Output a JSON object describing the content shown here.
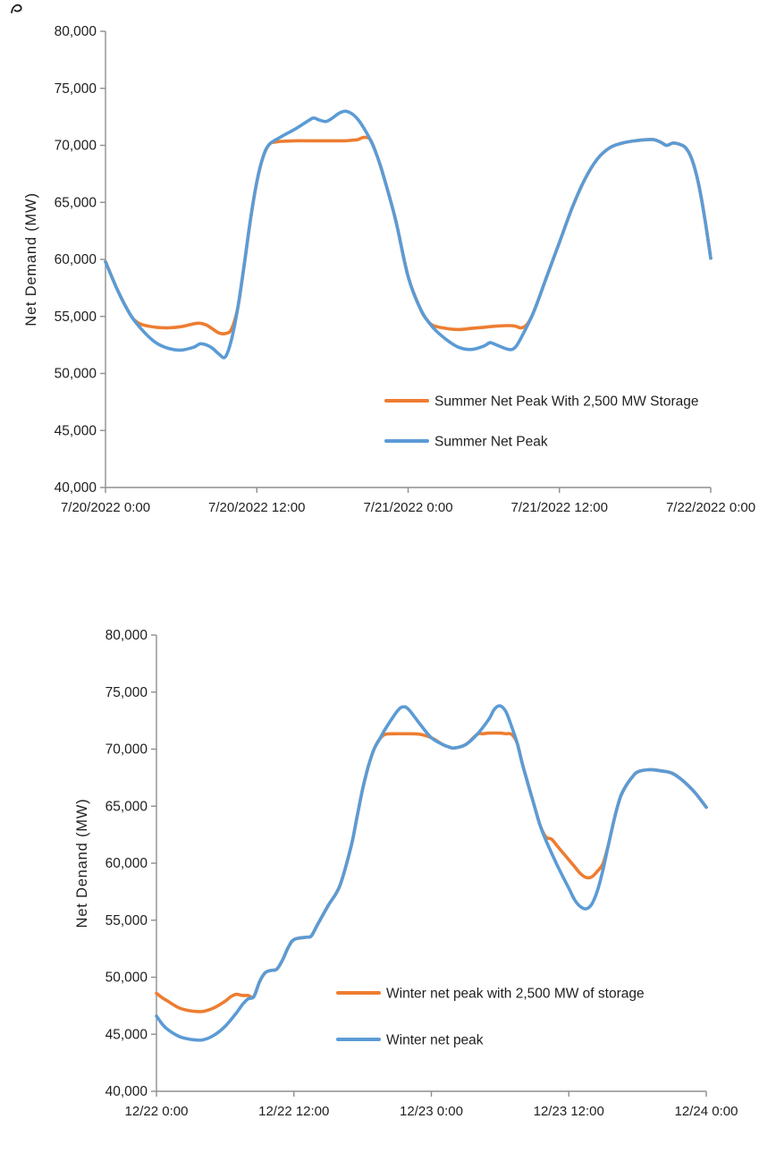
{
  "figure": {
    "background": "#ffffff"
  },
  "colors": {
    "storage_series": "#ED7D31",
    "net_peak_series": "#5B9BD5",
    "axis": "#8f8f8f",
    "text": "#1f1f1f"
  },
  "chart_data": [
    {
      "id": "summer",
      "type": "line",
      "title": "",
      "xlabel": "",
      "ylabel": "Net Demand (MW)",
      "ylim": [
        40000,
        80000
      ],
      "xlim": [
        0,
        48
      ],
      "grid": false,
      "legend_position": "inside-lower-right",
      "yticks": [
        40000,
        45000,
        50000,
        55000,
        60000,
        65000,
        70000,
        75000,
        80000
      ],
      "ytick_labels": [
        "40,000",
        "45,000",
        "50,000",
        "55,000",
        "60,000",
        "65,000",
        "70,000",
        "75,000",
        "80,000"
      ],
      "xticks": [
        0,
        12,
        24,
        36,
        48
      ],
      "xtick_labels": [
        "7/20/2022 0:00",
        "7/20/2022 12:00",
        "7/21/2022 0:00",
        "7/21/2022 12:00",
        "7/22/2022 0:00"
      ],
      "series": [
        {
          "name": "Summer Net Peak With 2,500 MW Storage",
          "color": "#ED7D31",
          "x": [
            0,
            1,
            2,
            2.5,
            3,
            4,
            5,
            6,
            7,
            7.5,
            8,
            8.5,
            9,
            9.5,
            10,
            10.5,
            11,
            11.5,
            12,
            12.5,
            13,
            13.5,
            14,
            15,
            16,
            17,
            18,
            19,
            19.5,
            20,
            20.5,
            21,
            21.5,
            22,
            23,
            24,
            25,
            25.5,
            26,
            27,
            28,
            29,
            30,
            31,
            32,
            32.5,
            33,
            33.5,
            34,
            35,
            36,
            37,
            38,
            39,
            40,
            41,
            42,
            43,
            43.5,
            44,
            44.5,
            45,
            45.5,
            46,
            46.5,
            47,
            47.5,
            48
          ],
          "y": [
            59800,
            57200,
            55100,
            54500,
            54250,
            54050,
            54000,
            54100,
            54350,
            54400,
            54250,
            53900,
            53550,
            53500,
            53900,
            55800,
            59500,
            63500,
            66800,
            69000,
            70100,
            70300,
            70350,
            70400,
            70400,
            70400,
            70400,
            70400,
            70450,
            70500,
            70700,
            70500,
            69200,
            67500,
            63500,
            58500,
            55600,
            54700,
            54200,
            53950,
            53850,
            53950,
            54050,
            54150,
            54200,
            54150,
            54000,
            54400,
            55500,
            58500,
            61500,
            64500,
            67000,
            68800,
            69800,
            70200,
            70400,
            70500,
            70500,
            70300,
            70000,
            70200,
            70100,
            69800,
            68800,
            66800,
            63800,
            60100
          ]
        },
        {
          "name": "Summer Net Peak",
          "color": "#5B9BD5",
          "x": [
            0,
            1,
            2,
            3,
            4,
            5,
            6,
            7,
            7.5,
            8,
            8.5,
            9,
            9.5,
            10,
            10.5,
            11,
            11.5,
            12,
            12.5,
            13,
            14,
            15,
            16,
            16.5,
            17,
            17.5,
            18,
            18.5,
            19,
            19.5,
            20,
            20.5,
            21,
            21.5,
            22,
            23,
            24,
            25,
            26,
            27,
            28,
            29,
            30,
            30.5,
            31,
            32,
            32.5,
            33,
            34,
            35,
            36,
            37,
            38,
            39,
            40,
            41,
            42,
            43,
            43.5,
            44,
            44.5,
            45,
            45.5,
            46,
            46.5,
            47,
            47.5,
            48
          ],
          "y": [
            59800,
            57200,
            55100,
            53700,
            52700,
            52200,
            52050,
            52300,
            52600,
            52500,
            52200,
            51700,
            51450,
            53000,
            55800,
            59500,
            63500,
            66800,
            69000,
            70100,
            70800,
            71400,
            72100,
            72400,
            72200,
            72100,
            72400,
            72800,
            73000,
            72800,
            72300,
            71500,
            70500,
            69200,
            67500,
            63500,
            58500,
            55600,
            54000,
            53000,
            52300,
            52100,
            52400,
            52700,
            52500,
            52100,
            52300,
            53200,
            55500,
            58500,
            61500,
            64500,
            67000,
            68800,
            69800,
            70200,
            70400,
            70500,
            70500,
            70300,
            70000,
            70200,
            70100,
            69800,
            68800,
            66800,
            63800,
            60100
          ]
        }
      ],
      "legend": [
        "Summer Net Peak With 2,500 MW Storage",
        "Summer Net Peak"
      ]
    },
    {
      "id": "winter",
      "type": "line",
      "title": "",
      "xlabel": "",
      "ylabel": "Net Denand (MW)",
      "ylim": [
        40000,
        80000
      ],
      "xlim": [
        0,
        48
      ],
      "grid": false,
      "legend_position": "inside-lower-right",
      "yticks": [
        40000,
        45000,
        50000,
        55000,
        60000,
        65000,
        70000,
        75000,
        80000
      ],
      "ytick_labels": [
        "40,000",
        "45,000",
        "50,000",
        "55,000",
        "60,000",
        "65,000",
        "70,000",
        "75,000",
        "80,000"
      ],
      "xticks": [
        0,
        12,
        24,
        36,
        48
      ],
      "xtick_labels": [
        "12/22 0:00",
        "12/22 12:00",
        "12/23 0:00",
        "12/23 12:00",
        "12/24 0:00"
      ],
      "series": [
        {
          "name": "Winter net peak with 2,500 MW of storage",
          "color": "#ED7D31",
          "x": [
            0,
            0.5,
            1,
            2,
            3,
            4,
            5,
            6,
            6.5,
            7,
            7.5,
            8,
            8.5,
            9,
            9.5,
            10,
            10.5,
            11,
            11.5,
            12,
            13,
            13.5,
            14,
            15,
            16,
            17,
            17.5,
            18,
            18.5,
            19,
            19.5,
            20,
            21,
            21.5,
            22,
            23,
            24,
            25,
            25.5,
            26,
            27,
            28,
            28.5,
            29,
            30,
            30.5,
            31,
            31.5,
            32,
            33,
            33.5,
            34,
            34.5,
            35,
            36,
            36.5,
            37,
            37.5,
            38,
            38.5,
            39,
            39.5,
            40,
            40.5,
            41,
            41.5,
            42,
            43,
            44,
            45,
            46,
            47,
            48
          ],
          "y": [
            48600,
            48200,
            47900,
            47300,
            47050,
            47000,
            47300,
            47900,
            48300,
            48500,
            48400,
            48400,
            48300,
            49600,
            50400,
            50600,
            50700,
            51500,
            52600,
            53300,
            53500,
            53600,
            54500,
            56300,
            58000,
            61500,
            64000,
            66500,
            68500,
            70000,
            70900,
            71300,
            71350,
            71350,
            71350,
            71300,
            71000,
            70400,
            70200,
            70100,
            70400,
            71300,
            71350,
            71400,
            71400,
            71350,
            71300,
            70500,
            68500,
            65000,
            63300,
            62300,
            62100,
            61500,
            60300,
            59700,
            59100,
            58750,
            58800,
            59300,
            60000,
            61800,
            64000,
            65800,
            66800,
            67500,
            68000,
            68200,
            68100,
            67900,
            67200,
            66200,
            64900
          ]
        },
        {
          "name": "Winter net peak",
          "color": "#5B9BD5",
          "x": [
            0,
            0.5,
            1,
            2,
            3,
            4,
            5,
            6,
            7,
            7.5,
            8,
            8.5,
            9,
            9.5,
            10,
            10.5,
            11,
            11.5,
            12,
            13,
            13.5,
            14,
            15,
            16,
            17,
            17.5,
            18,
            18.5,
            19,
            19.5,
            20,
            21,
            21.5,
            22,
            23,
            24,
            25,
            25.5,
            26,
            27,
            28,
            29,
            29.5,
            30,
            30.5,
            31,
            31.5,
            32,
            33,
            33.5,
            34,
            35,
            36,
            36.5,
            37,
            37.5,
            38,
            38.5,
            39,
            39.5,
            40,
            40.5,
            41,
            41.5,
            42,
            43,
            44,
            45,
            46,
            47,
            48
          ],
          "y": [
            46600,
            45900,
            45400,
            44800,
            44550,
            44500,
            44900,
            45700,
            46900,
            47600,
            48100,
            48300,
            49600,
            50400,
            50600,
            50700,
            51500,
            52600,
            53300,
            53500,
            53600,
            54500,
            56300,
            58000,
            61500,
            64000,
            66500,
            68500,
            70000,
            70900,
            71800,
            73300,
            73700,
            73500,
            72200,
            71000,
            70400,
            70200,
            70100,
            70400,
            71300,
            72600,
            73500,
            73800,
            73300,
            72000,
            70500,
            68500,
            65000,
            63300,
            62000,
            59800,
            57800,
            56800,
            56200,
            56000,
            56400,
            57600,
            59500,
            61800,
            64000,
            65800,
            66800,
            67500,
            68000,
            68200,
            68100,
            67900,
            67200,
            66200,
            64900
          ]
        }
      ],
      "legend": [
        "Winter net peak with 2,500 MW of storage",
        "Winter net peak"
      ]
    }
  ]
}
